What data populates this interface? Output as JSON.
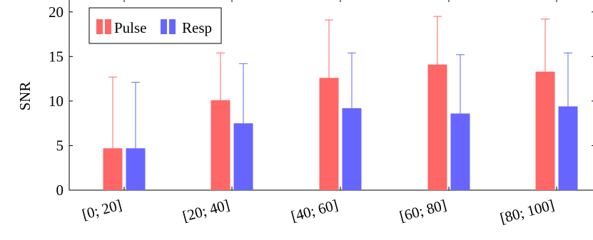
{
  "chart_data": {
    "type": "bar",
    "title": "",
    "xlabel": "",
    "ylabel": "SNR",
    "ylim": [
      0,
      21.5
    ],
    "yticks": [
      0,
      5,
      10,
      15,
      20
    ],
    "grid": false,
    "legend_position": "top-left",
    "categories": [
      "[0; 20]",
      "[20; 40]",
      "[40; 60]",
      "[60; 80]",
      "[80; 100]"
    ],
    "series": [
      {
        "name": "Pulse",
        "color": "#ff6666",
        "values": [
          4.7,
          10.1,
          12.6,
          14.1,
          13.3
        ],
        "error_upper": [
          12.7,
          15.4,
          19.1,
          19.5,
          19.2
        ]
      },
      {
        "name": "Resp",
        "color": "#6666ff",
        "values": [
          4.7,
          7.5,
          9.2,
          8.6,
          9.4
        ],
        "error_upper": [
          12.1,
          14.2,
          15.4,
          15.2,
          15.4
        ]
      }
    ]
  }
}
